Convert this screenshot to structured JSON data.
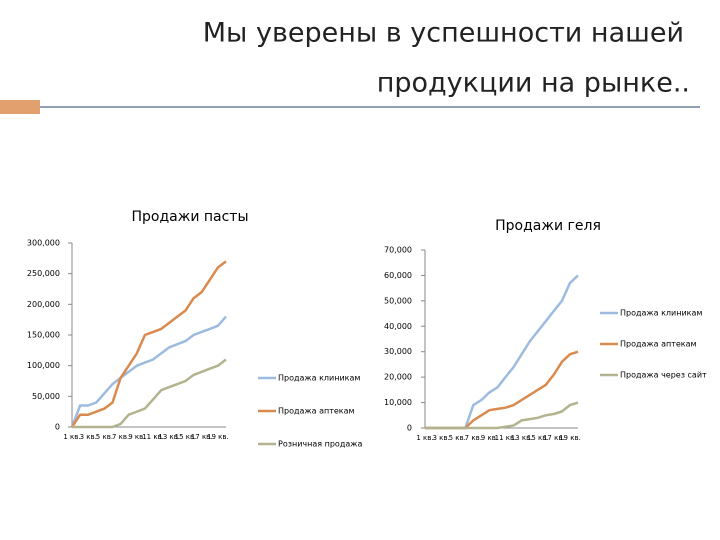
{
  "slide": {
    "title_lines": [
      "Мы уверены в успешности нашей",
      "продукции на рынке.."
    ]
  },
  "chart_data": [
    {
      "type": "line",
      "title": "Продажи пасты",
      "categories": [
        "1 кв.",
        null,
        "3 кв.",
        null,
        "5 кв.",
        null,
        "7 кв.",
        null,
        "9 кв.",
        null,
        "11 кв.",
        null,
        "13 кв.",
        null,
        "15 кв.",
        null,
        "17 кв.",
        null,
        "19 кв.",
        null
      ],
      "series": [
        {
          "name": "Продажа клиникам",
          "color": "#9dbbe0",
          "values": [
            0,
            35000,
            35000,
            40000,
            55000,
            70000,
            80000,
            90000,
            100000,
            105000,
            110000,
            120000,
            130000,
            135000,
            140000,
            150000,
            155000,
            160000,
            165000,
            180000
          ]
        },
        {
          "name": "Продажа аптекам",
          "color": "#d98a4e",
          "values": [
            0,
            20000,
            20000,
            25000,
            30000,
            40000,
            80000,
            100000,
            120000,
            150000,
            155000,
            160000,
            170000,
            180000,
            190000,
            210000,
            220000,
            240000,
            260000,
            270000
          ]
        },
        {
          "name": "Розничная продажа",
          "color": "#b3b48f",
          "values": [
            0,
            0,
            0,
            0,
            0,
            0,
            5000,
            20000,
            25000,
            30000,
            45000,
            60000,
            65000,
            70000,
            75000,
            85000,
            90000,
            95000,
            100000,
            110000
          ]
        }
      ],
      "ylim": [
        0,
        300000
      ],
      "yticks": [
        0,
        {
          "value": 50000,
          "label": "50,000"
        },
        {
          "value": 100000,
          "label": "100,000"
        },
        {
          "value": 150000,
          "label": "150,000"
        },
        {
          "value": 200000,
          "label": "200,000"
        },
        {
          "value": 250000,
          "label": "250,000"
        },
        {
          "value": 300000,
          "label": "300,000"
        }
      ],
      "grid": false,
      "legend": "right"
    },
    {
      "type": "line",
      "title": "Продажи геля",
      "categories": [
        "1 кв.",
        null,
        "3 кв.",
        null,
        "5 кв.",
        null,
        "7 кв.",
        null,
        "9 кв.",
        null,
        "11 кв.",
        null,
        "13 кв.",
        null,
        "15 кв.",
        null,
        "17 кв.",
        null,
        "19 кв.",
        null
      ],
      "series": [
        {
          "name": "Продажа клиникам",
          "color": "#9dbbe0",
          "values": [
            0,
            0,
            0,
            0,
            0,
            0,
            9000,
            11000,
            14000,
            16000,
            20000,
            24000,
            29000,
            34000,
            38000,
            42000,
            46000,
            50000,
            57000,
            60000
          ]
        },
        {
          "name": "Продажа аптекам",
          "color": "#d98a4e",
          "values": [
            0,
            0,
            0,
            0,
            0,
            0,
            3000,
            5000,
            7000,
            7500,
            8000,
            9000,
            11000,
            13000,
            15000,
            17000,
            21000,
            26000,
            29000,
            30000
          ]
        },
        {
          "name": "Продажа через сайт",
          "color": "#b3b48f",
          "values": [
            0,
            0,
            0,
            0,
            0,
            0,
            0,
            0,
            0,
            0,
            500,
            1000,
            3000,
            3500,
            4000,
            5000,
            5500,
            6500,
            9000,
            10000
          ]
        }
      ],
      "ylim": [
        0,
        70000
      ],
      "yticks": [
        0,
        {
          "value": 10000,
          "label": "10,000"
        },
        {
          "value": 20000,
          "label": "20,000"
        },
        {
          "value": 30000,
          "label": "30,000"
        },
        {
          "value": 40000,
          "label": "40,000"
        },
        {
          "value": 50000,
          "label": "50,000"
        },
        {
          "value": 60000,
          "label": "60,000"
        },
        {
          "value": 70000,
          "label": "70,000"
        }
      ],
      "grid": false,
      "legend": "right"
    }
  ]
}
